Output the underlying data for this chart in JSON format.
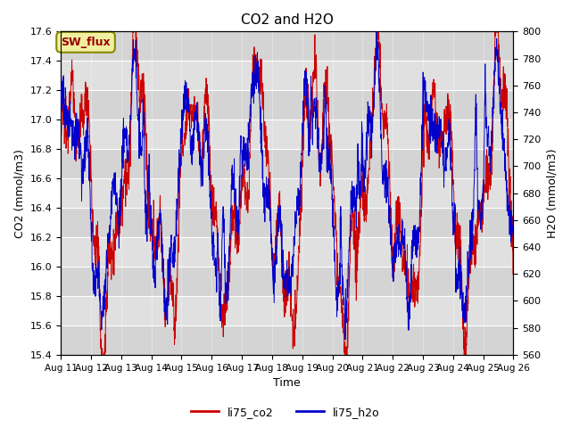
{
  "title": "CO2 and H2O",
  "xlabel": "Time",
  "ylabel_left": "CO2 (mmol/m3)",
  "ylabel_right": "H2O (mmol/m3)",
  "ylim_left": [
    15.4,
    17.6
  ],
  "ylim_right": [
    560,
    800
  ],
  "yticks_left": [
    15.4,
    15.6,
    15.8,
    16.0,
    16.2,
    16.4,
    16.6,
    16.8,
    17.0,
    17.2,
    17.4,
    17.6
  ],
  "yticks_right": [
    560,
    580,
    600,
    620,
    640,
    660,
    680,
    700,
    720,
    740,
    760,
    780,
    800
  ],
  "xtick_labels": [
    "Aug 11",
    "Aug 12",
    "Aug 13",
    "Aug 14",
    "Aug 15",
    "Aug 16",
    "Aug 17",
    "Aug 18",
    "Aug 19",
    "Aug 20",
    "Aug 21",
    "Aug 22",
    "Aug 23",
    "Aug 24",
    "Aug 25",
    "Aug 26"
  ],
  "annotation_text": "SW_flux",
  "color_co2": "#cc0000",
  "color_h2o": "#0000cc",
  "background_color": "#e0e0e0",
  "band_color_light": "#d8d8d8",
  "band_color_dark": "#c8c8c8",
  "legend_co2": "li75_co2",
  "legend_h2o": "li75_h2o",
  "n_points": 2000,
  "figsize": [
    6.4,
    4.8
  ],
  "dpi": 100
}
